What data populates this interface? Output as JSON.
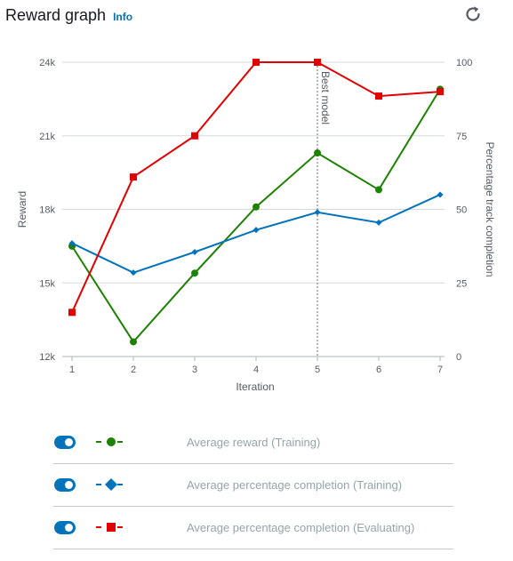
{
  "header": {
    "title": "Reward graph",
    "info_label": "Info"
  },
  "icons": {
    "refresh": "refresh-icon"
  },
  "colors": {
    "reward_training": "#1d8102",
    "completion_training": "#0073bb",
    "completion_evaluating": "#e00000",
    "toggle_on": "#0073bb"
  },
  "legend": {
    "items": [
      {
        "label": "Average reward (Training)",
        "enabled": true,
        "marker": "circle",
        "color": "#1d8102"
      },
      {
        "label": "Average percentage completion (Training)",
        "enabled": true,
        "marker": "diamond",
        "color": "#0073bb"
      },
      {
        "label": "Average percentage completion (Evaluating)",
        "enabled": true,
        "marker": "square",
        "color": "#e00000"
      }
    ]
  },
  "chart_data": {
    "type": "line",
    "x": [
      1,
      2,
      3,
      4,
      5,
      6,
      7
    ],
    "xlabel": "Iteration",
    "ylabel_left": "Reward",
    "ylabel_right": "Percentage track completion",
    "ylim_left": [
      12000,
      24000
    ],
    "ylim_right": [
      0,
      100
    ],
    "yticks_left": [
      {
        "value": 12000,
        "label": "12k"
      },
      {
        "value": 15000,
        "label": "15k"
      },
      {
        "value": 18000,
        "label": "18k"
      },
      {
        "value": 21000,
        "label": "21k"
      },
      {
        "value": 24000,
        "label": "24k"
      }
    ],
    "yticks_right": [
      0,
      25,
      50,
      75,
      100
    ],
    "grid": true,
    "annotation": {
      "x": 5,
      "label": "Best model"
    },
    "series": [
      {
        "name": "Average reward (Training)",
        "axis": "left",
        "marker": "circle",
        "color": "#1d8102",
        "values": [
          16500,
          12600,
          15400,
          18100,
          20300,
          18800,
          22900
        ]
      },
      {
        "name": "Average percentage completion (Training)",
        "axis": "right",
        "marker": "diamond",
        "color": "#0073bb",
        "values": [
          38.5,
          28.5,
          35.5,
          43,
          49,
          45.5,
          55
        ]
      },
      {
        "name": "Average percentage completion (Evaluating)",
        "axis": "right",
        "marker": "square",
        "color": "#e00000",
        "values": [
          15,
          61,
          75,
          100,
          100,
          88.5,
          90
        ]
      }
    ]
  }
}
